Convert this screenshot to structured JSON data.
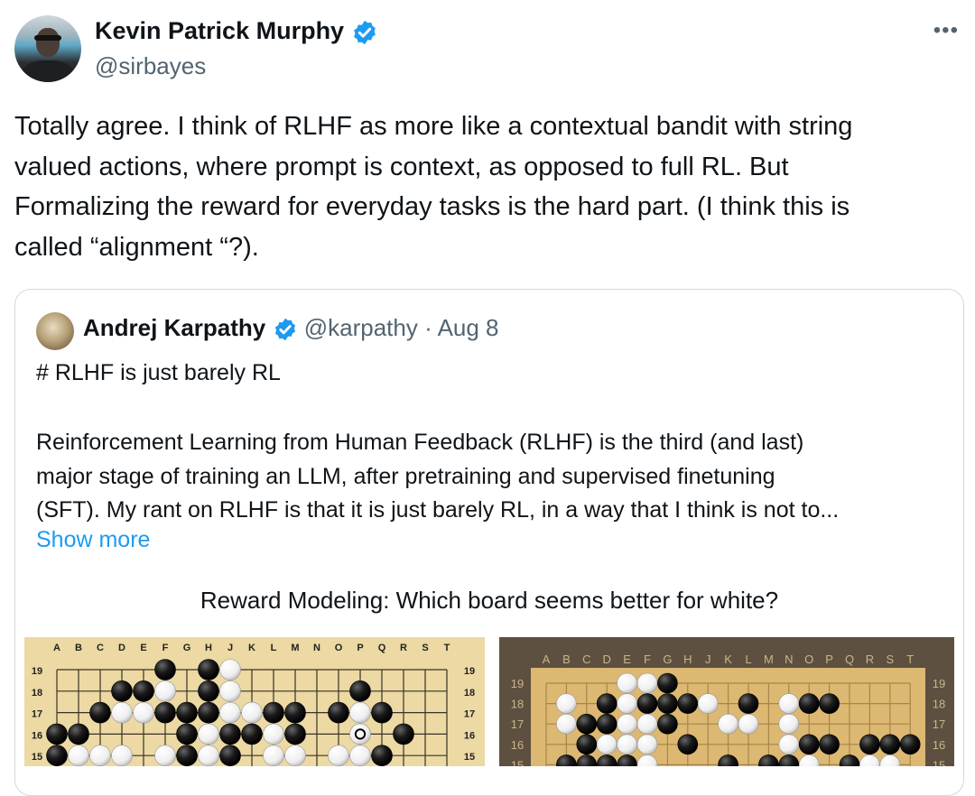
{
  "author": {
    "name": "Kevin Patrick Murphy",
    "handle": "@sirbayes",
    "verified": true
  },
  "more_icon": "more-horizontal-icon",
  "tweet_text_lines": [
    "Totally agree. I think of RLHF as more like a contextual bandit with string",
    "valued actions, where prompt is context, as opposed to full RL. But",
    "Formalizing the reward for everyday tasks is the hard part. (I think this is",
    "called “alignment “?)."
  ],
  "quote": {
    "name": "Andrej Karpathy",
    "handle": "@karpathy",
    "separator": "·",
    "date": "Aug 8",
    "title": "# RLHF is just barely RL",
    "body_lines": [
      "Reinforcement Learning from Human Feedback (RLHF) is the third (and last)",
      "major stage of training an LLM, after pretraining and supervised finetuning",
      "(SFT). My rant on RLHF is that it is just barely RL, in a way that I think is not to..."
    ],
    "show_more": "Show more",
    "image_caption": "Reward Modeling: Which board seems better for white?"
  },
  "boards": {
    "columns": [
      "A",
      "B",
      "C",
      "D",
      "E",
      "F",
      "G",
      "H",
      "J",
      "K",
      "L",
      "M",
      "N",
      "O",
      "P",
      "Q",
      "R",
      "S",
      "T"
    ],
    "rows": [
      "19",
      "18",
      "17",
      "16",
      "15"
    ],
    "left": [
      ".....b.bw..........",
      "...bbw.bw.....b....",
      "..bwwbbbwwbb.bwb...",
      "bb....bwbbwb..m.b..",
      "bwww.wbwb.ww.wwb..."
    ],
    "right": [
      "....wwb............",
      ".w.bwbbbw.b.wbb....",
      ".wbbwwb..ww.w......",
      "..bwww.b....wbb.bbb",
      ".bbbbw...b.bbw.bww."
    ]
  },
  "colors": {
    "accent": "#1d9bf0",
    "muted": "#536471",
    "border": "#cfd9de"
  }
}
